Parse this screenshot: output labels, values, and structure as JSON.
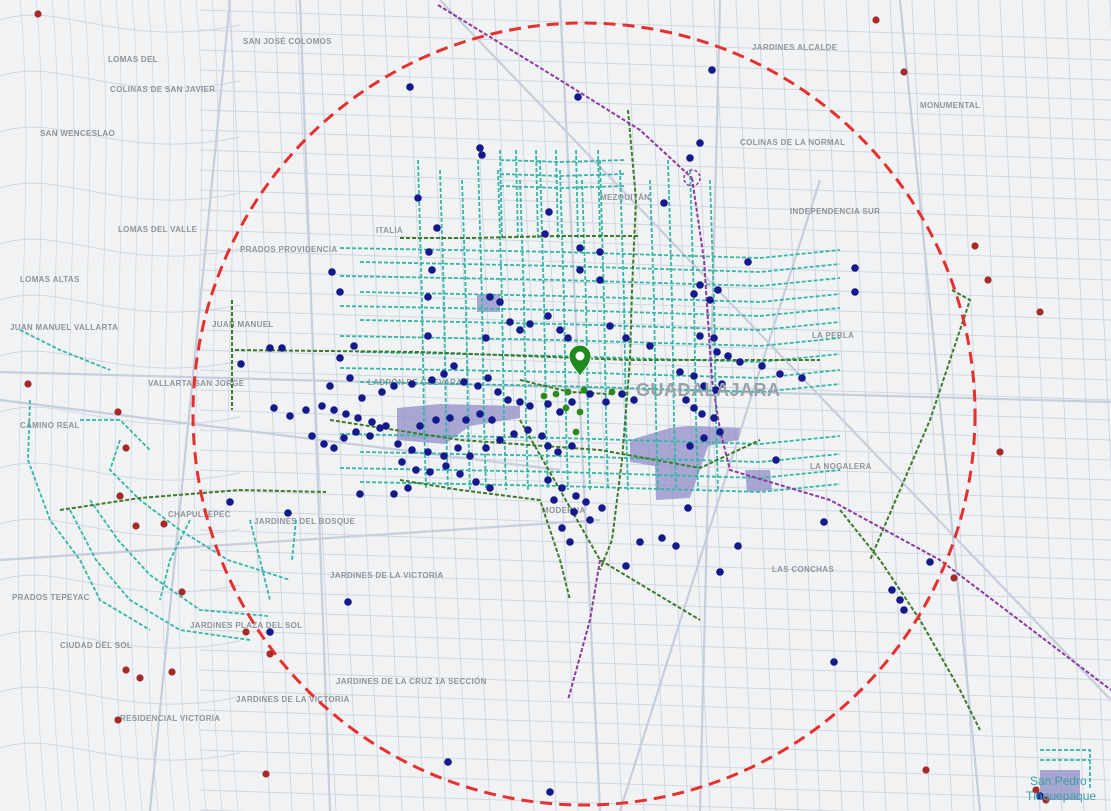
{
  "map": {
    "city_label": "GUADALAJARA",
    "corner_label_1": "San Pedro",
    "corner_label_2": "Tlaquepaque",
    "colors": {
      "background": "#f2f2f2",
      "block_fill": "#fafafa",
      "street": "#cfd6e2",
      "radius_circle": "#e53030",
      "blue_points": "#141a8c",
      "red_points": "#a52a2a",
      "green_points": "#2f8a1e",
      "teal_routes": "#35b7a8",
      "green_routes": "#3d7a2a",
      "purple_routes": "#8a3aa0",
      "highlight_areas": "#8f8cc8",
      "marker": "#1e8a1e"
    },
    "neighborhood_labels": [
      {
        "id": "lomas-del-bosque",
        "text": "LOMAS DEL"
      },
      {
        "id": "san-jose-colomos",
        "text": "SAN JOSÉ COLOMOS"
      },
      {
        "id": "colinas-san-javier",
        "text": "COLINAS DE SAN JAVIER"
      },
      {
        "id": "san-wenceslao",
        "text": "SAN WENCESLAO"
      },
      {
        "id": "lomas-del-valle",
        "text": "LOMAS DEL VALLE"
      },
      {
        "id": "lomas-altas",
        "text": "LOMAS ALTAS"
      },
      {
        "id": "juan-manuel-vallarta",
        "text": "JUAN MANUEL VALLARTA"
      },
      {
        "id": "juan-manuel",
        "text": "JUAN MANUEL"
      },
      {
        "id": "vallarta-san-jorge",
        "text": "VALLARTA SAN JORGE"
      },
      {
        "id": "camino-real",
        "text": "CAMINO REAL"
      },
      {
        "id": "prados-providencia",
        "text": "PRADOS PROVIDENCIA"
      },
      {
        "id": "italia",
        "text": "ITALIA"
      },
      {
        "id": "ladron-de-guevara",
        "text": "LADRÓN DE GUEVARA"
      },
      {
        "id": "chapultepec",
        "text": "CHAPULTEPEC"
      },
      {
        "id": "jardines-del-bosque",
        "text": "JARDINES DEL BOSQUE"
      },
      {
        "id": "jardines-de-la-victoria",
        "text": "JARDINES DE LA VICTORIA"
      },
      {
        "id": "jardines-plaza-del-sol",
        "text": "JARDINES PLAZA DEL SOL"
      },
      {
        "id": "prados-tepeyac",
        "text": "PRADOS TEPEYAC"
      },
      {
        "id": "ciudad-del-sol",
        "text": "CIUDAD DEL SOL"
      },
      {
        "id": "residencial-victoria",
        "text": "RESIDENCIAL VICTORIA"
      },
      {
        "id": "jardines-victoria-2",
        "text": "JARDINES DE LA VICTORIA"
      },
      {
        "id": "jardines-cruz",
        "text": "JARDINES DE LA CRUZ 1A SECCIÓN"
      },
      {
        "id": "la-perla",
        "text": "LA PERLA"
      },
      {
        "id": "independencia",
        "text": "INDEPENDENCIA SUR"
      },
      {
        "id": "monumental",
        "text": "MONUMENTAL"
      },
      {
        "id": "alcalde",
        "text": "JARDINES ALCALDE"
      },
      {
        "id": "la-normal",
        "text": "COLINAS DE LA NORMAL"
      },
      {
        "id": "mezquitan",
        "text": "MEZQUITÁN"
      },
      {
        "id": "moderna",
        "text": "MODERNA"
      },
      {
        "id": "las-conchas",
        "text": "LAS CONCHAS"
      },
      {
        "id": "la-nogalera",
        "text": "LA NOGALERA"
      }
    ]
  }
}
